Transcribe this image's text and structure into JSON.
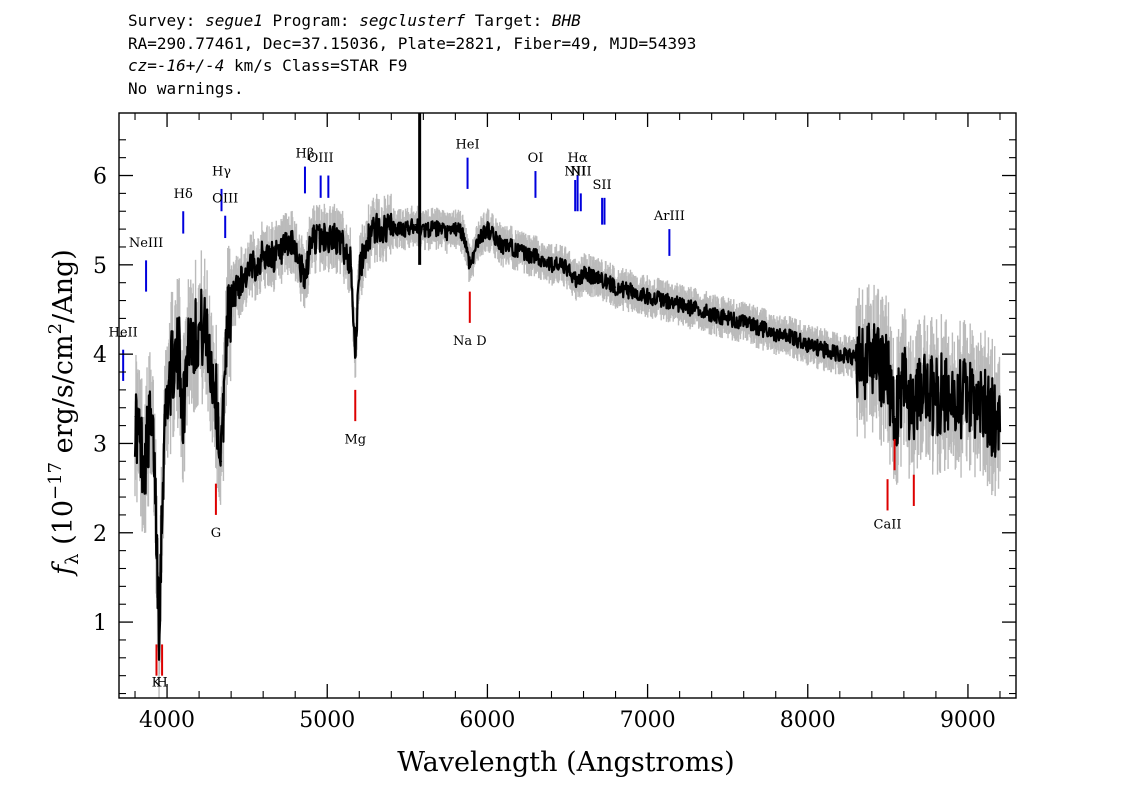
{
  "header": {
    "survey_label": "Survey: ",
    "survey": "segue1",
    "program_label": " Program: ",
    "program": "segclusterf",
    "target_label": " Target: ",
    "target": "BHB",
    "line2": "RA=290.77461, Dec=37.15036, Plate=2821, Fiber=49, MJD=54393",
    "cz_label": "cz=",
    "cz_value": "-16+/-4",
    "cz_rest": " km/s Class=STAR F9",
    "line4": "No warnings."
  },
  "colors": {
    "flux": "#000000",
    "error": "#bbbbbb",
    "emission": "#0000dd",
    "absorption": "#dd0000"
  },
  "chart_data": {
    "type": "line",
    "xlabel": "Wavelength (Angstroms)",
    "ylabel_parts": {
      "f": "f",
      "sub": "λ",
      "open": " (10",
      "exp": "−17",
      "units": " erg/s/cm",
      "sq": "2",
      "tail": "/Ang)"
    },
    "xlim": [
      3700,
      9300
    ],
    "ylim": [
      0.15,
      6.7
    ],
    "x_ticks": [
      4000,
      5000,
      6000,
      7000,
      8000,
      9000
    ],
    "x_tick_labels": [
      "4000",
      "5000",
      "6000",
      "7000",
      "8000",
      "9000"
    ],
    "y_ticks": [
      1,
      2,
      3,
      4,
      5,
      6
    ],
    "y_tick_labels": [
      "1",
      "2",
      "3",
      "4",
      "5",
      "6"
    ],
    "series": [
      {
        "kind": "flux",
        "x": [
          3800,
          3830,
          3860,
          3890,
          3920,
          3950,
          3980,
          4000,
          4040,
          4080,
          4101,
          4130,
          4170,
          4220,
          4260,
          4300,
          4340,
          4370,
          4400,
          4450,
          4500,
          4550,
          4600,
          4650,
          4700,
          4750,
          4800,
          4861,
          4900,
          4950,
          5000,
          5050,
          5100,
          5150,
          5175,
          5200,
          5250,
          5300,
          5350,
          5400,
          5450,
          5500,
          5550,
          5600,
          5650,
          5700,
          5750,
          5800,
          5850,
          5890,
          5950,
          6000,
          6050,
          6100,
          6150,
          6200,
          6250,
          6300,
          6350,
          6400,
          6450,
          6500,
          6563,
          6600,
          6700,
          6800,
          6900,
          7000,
          7100,
          7200,
          7300,
          7400,
          7500,
          7600,
          7700,
          7800,
          7900,
          8000,
          8100,
          8200,
          8300,
          8400,
          8500,
          8542,
          8600,
          8662,
          8700,
          8800,
          8850,
          8900,
          8950,
          9000,
          9050,
          9100,
          9150,
          9200
        ],
        "y": [
          3.3,
          3.0,
          2.8,
          3.2,
          2.9,
          1.0,
          3.0,
          3.6,
          3.9,
          4.0,
          3.3,
          4.2,
          4.2,
          4.3,
          4.1,
          3.6,
          2.8,
          4.3,
          4.6,
          4.8,
          4.9,
          5.0,
          5.1,
          5.1,
          5.1,
          5.2,
          5.2,
          4.8,
          5.3,
          5.3,
          5.3,
          5.3,
          5.2,
          5.0,
          4.0,
          4.9,
          5.3,
          5.4,
          5.4,
          5.4,
          5.4,
          5.4,
          5.45,
          5.4,
          5.4,
          5.4,
          5.35,
          5.4,
          5.35,
          5.0,
          5.3,
          5.4,
          5.3,
          5.2,
          5.2,
          5.15,
          5.1,
          5.1,
          5.05,
          5.0,
          5.0,
          4.95,
          4.8,
          4.9,
          4.85,
          4.75,
          4.7,
          4.65,
          4.6,
          4.55,
          4.5,
          4.45,
          4.4,
          4.35,
          4.3,
          4.2,
          4.2,
          4.1,
          4.05,
          4.0,
          3.95,
          3.9,
          3.8,
          3.3,
          3.7,
          3.3,
          3.6,
          3.5,
          3.6,
          3.4,
          3.5,
          3.5,
          3.4,
          3.4,
          3.3,
          3.3
        ]
      }
    ],
    "line_markers": [
      {
        "label": "HeII",
        "x": 3726,
        "kind": "emission",
        "y_bottom": 3.7,
        "y_top": 4.05,
        "label_y": 4.2
      },
      {
        "label": "NeIII",
        "x": 3869,
        "kind": "emission",
        "y_bottom": 4.7,
        "y_top": 5.05,
        "label_y": 5.2
      },
      {
        "label": "Hδ",
        "x": 4101,
        "kind": "emission",
        "y_bottom": 5.35,
        "y_top": 5.6,
        "label_y": 5.75
      },
      {
        "label": "Hγ",
        "x": 4340,
        "kind": "emission",
        "y_bottom": 5.6,
        "y_top": 5.85,
        "label_y": 6.0
      },
      {
        "label": "OIII",
        "x": 4363,
        "kind": "emission",
        "y_bottom": 5.3,
        "y_top": 5.55,
        "label_y": 5.7
      },
      {
        "label": "Hβ",
        "x": 4861,
        "kind": "emission",
        "y_bottom": 5.8,
        "y_top": 6.1,
        "label_y": 6.2
      },
      {
        "label": "OIII",
        "x": 4959,
        "kind": "emission",
        "y_bottom": 5.75,
        "y_top": 6.0,
        "label_y": 6.15
      },
      {
        "label": "",
        "x": 5007,
        "kind": "emission",
        "y_bottom": 5.75,
        "y_top": 6.0,
        "label_y": 6.15
      },
      {
        "label": "HeI",
        "x": 5876,
        "kind": "emission",
        "y_bottom": 5.85,
        "y_top": 6.2,
        "label_y": 6.3
      },
      {
        "label": "OI",
        "x": 6300,
        "kind": "emission",
        "y_bottom": 5.75,
        "y_top": 6.05,
        "label_y": 6.15
      },
      {
        "label": "NII",
        "x": 6548,
        "kind": "emission",
        "y_bottom": 5.6,
        "y_top": 5.95,
        "label_y": 6.0
      },
      {
        "label": "Hα",
        "x": 6563,
        "kind": "emission",
        "y_bottom": 5.6,
        "y_top": 6.0,
        "label_y": 6.15
      },
      {
        "label": "NII",
        "x": 6583,
        "kind": "emission",
        "y_bottom": 5.6,
        "y_top": 5.8,
        "label_y": 6.0
      },
      {
        "label": "SII",
        "x": 6716,
        "kind": "emission",
        "y_bottom": 5.45,
        "y_top": 5.75,
        "label_y": 5.85
      },
      {
        "label": "",
        "x": 6731,
        "kind": "emission",
        "y_bottom": 5.45,
        "y_top": 5.75,
        "label_y": 5.85
      },
      {
        "label": "ArIII",
        "x": 7136,
        "kind": "emission",
        "y_bottom": 5.1,
        "y_top": 5.4,
        "label_y": 5.5
      },
      {
        "label": "Na D",
        "x": 5890,
        "kind": "absorption",
        "y_bottom": 4.35,
        "y_top": 4.7,
        "label_y": 4.1
      },
      {
        "label": "Mg",
        "x": 5175,
        "kind": "absorption",
        "y_bottom": 3.25,
        "y_top": 3.6,
        "label_y": 3.0
      },
      {
        "label": "G",
        "x": 4305,
        "kind": "absorption",
        "y_bottom": 2.2,
        "y_top": 2.55,
        "label_y": 1.95
      },
      {
        "label": "K",
        "x": 3934,
        "kind": "absorption",
        "y_bottom": 0.4,
        "y_top": 0.75,
        "label_y": 0.28
      },
      {
        "label": "H",
        "x": 3969,
        "kind": "absorption",
        "y_bottom": 0.4,
        "y_top": 0.75,
        "label_y": 0.28
      },
      {
        "label": "CaII",
        "x": 8498,
        "kind": "absorption",
        "y_bottom": 2.25,
        "y_top": 2.6,
        "label_y": 2.05
      },
      {
        "label": "",
        "x": 8542,
        "kind": "absorption",
        "y_bottom": 2.7,
        "y_top": 3.05,
        "label_y": 2.05
      },
      {
        "label": "",
        "x": 8662,
        "kind": "absorption",
        "y_bottom": 2.3,
        "y_top": 2.65,
        "label_y": 2.05
      }
    ]
  }
}
